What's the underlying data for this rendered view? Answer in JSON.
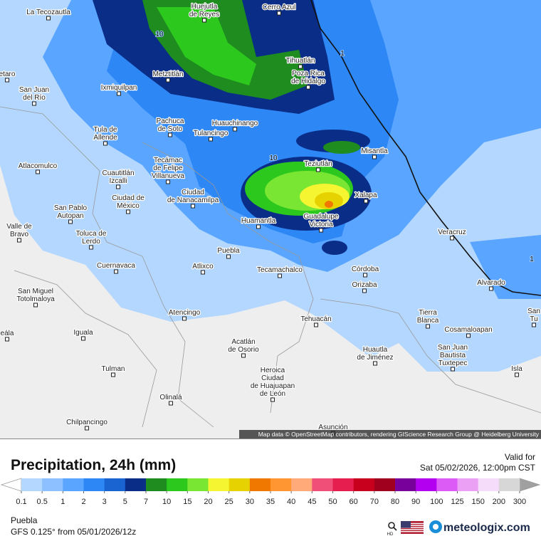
{
  "map": {
    "places": [
      {
        "lines": [
          "La Tecozautla"
        ]
      },
      {
        "lines": [
          "Huejutla",
          "de Reyes"
        ]
      },
      {
        "lines": [
          "Cerro Azul"
        ]
      },
      {
        "lines": [
          "Tihuatlán"
        ]
      },
      {
        "lines": [
          "Poza Rica",
          "de Hidalgo"
        ]
      },
      {
        "lines": [
          "Metztitlán"
        ]
      },
      {
        "lines": [
          "etaro"
        ]
      },
      {
        "lines": [
          "Ixmiquilpan"
        ]
      },
      {
        "lines": [
          "San Juan",
          "del Río"
        ]
      },
      {
        "lines": [
          "Pachuca",
          "de Soto"
        ]
      },
      {
        "lines": [
          "Huauchinango"
        ]
      },
      {
        "lines": [
          "Tulancingo"
        ]
      },
      {
        "lines": [
          "Tula de",
          "Allende"
        ]
      },
      {
        "lines": [
          "Misantla"
        ]
      },
      {
        "lines": [
          "Teziutlán"
        ]
      },
      {
        "lines": [
          "Atlacomulco"
        ]
      },
      {
        "lines": [
          "Tecámac",
          "de Felipe",
          "Villanueva"
        ]
      },
      {
        "lines": [
          "Cuautitlán",
          "Izcalli"
        ]
      },
      {
        "lines": [
          "Ciudad de",
          "México"
        ]
      },
      {
        "lines": [
          "Ciudad",
          "de Nanacamilpa"
        ]
      },
      {
        "lines": [
          "Xalapa"
        ]
      },
      {
        "lines": [
          "San Pablo",
          "Autopan"
        ]
      },
      {
        "lines": [
          "Guadalupe",
          "Victoria"
        ]
      },
      {
        "lines": [
          "Huamantla"
        ]
      },
      {
        "lines": [
          "Valle de",
          "Bravo"
        ]
      },
      {
        "lines": [
          "Toluca de",
          "Lerdo"
        ]
      },
      {
        "lines": [
          "Veracruz"
        ]
      },
      {
        "lines": [
          "Puebla"
        ]
      },
      {
        "lines": [
          "Cuernavaca"
        ]
      },
      {
        "lines": [
          "Atlixco"
        ]
      },
      {
        "lines": [
          "Tecamachalco"
        ]
      },
      {
        "lines": [
          "Córdoba"
        ]
      },
      {
        "lines": [
          "Orizaba"
        ]
      },
      {
        "lines": [
          "Alvarado"
        ]
      },
      {
        "lines": [
          "San Miguel",
          "Totolmaloya"
        ]
      },
      {
        "lines": [
          "Atencingo"
        ]
      },
      {
        "lines": [
          "Tierra",
          "Blanca"
        ]
      },
      {
        "lines": [
          "Tehuacán"
        ]
      },
      {
        "lines": [
          "San",
          "Tu"
        ]
      },
      {
        "lines": [
          "Iguala"
        ]
      },
      {
        "lines": [
          "eála"
        ]
      },
      {
        "lines": [
          "Cosamaloapan"
        ]
      },
      {
        "lines": [
          "Acatlán",
          "de Osorio"
        ]
      },
      {
        "lines": [
          "Huautla",
          "de Jiménez"
        ]
      },
      {
        "lines": [
          "San Juan",
          "Bautista",
          "Tuxtepec"
        ]
      },
      {
        "lines": [
          "Isla"
        ]
      },
      {
        "lines": [
          "Tulman"
        ]
      },
      {
        "lines": [
          "Heroica",
          "Ciudad",
          "de Huajuapan",
          "de León"
        ]
      },
      {
        "lines": [
          "Olinalá"
        ]
      },
      {
        "lines": [
          "Chilpancingo"
        ]
      },
      {
        "lines": [
          "Asunción"
        ]
      }
    ],
    "contour_labels": [
      10,
      10,
      1,
      1
    ],
    "attribution": "Map data © OpenStreetMap contributors, rendering GIScience Research Group @ Heidelberg University"
  },
  "header": {
    "title": "Precipitation, 24h (mm)",
    "valid_label": "Valid for",
    "valid_time": "Sat 05/02/2026, 12:00pm CST"
  },
  "legend": {
    "labels": [
      0.1,
      0.5,
      1,
      2,
      3,
      5,
      7,
      10,
      15,
      20,
      25,
      30,
      35,
      40,
      45,
      50,
      60,
      70,
      80,
      90,
      100,
      125,
      150,
      200,
      300
    ],
    "colors": [
      "#b4d7ff",
      "#8cc0ff",
      "#5aa5ff",
      "#2d87f5",
      "#1a64d2",
      "#0a2d87",
      "#1e8c1e",
      "#2dc81e",
      "#78e632",
      "#f5f532",
      "#e6d200",
      "#f07800",
      "#ff9632",
      "#ffaa78",
      "#f05078",
      "#e61e50",
      "#c8001e",
      "#a0001e",
      "#78009b",
      "#b400f0",
      "#dc5af5",
      "#eba0f5",
      "#f5dcfa",
      "#d7d7d7"
    ],
    "under_color": "#ffffff",
    "over_color": "#a0a0a0"
  },
  "footer": {
    "location": "Puebla",
    "model": "GFS 0.125° from 05/01/2026/12z",
    "hd": "HD",
    "brand": "meteologix.com"
  }
}
